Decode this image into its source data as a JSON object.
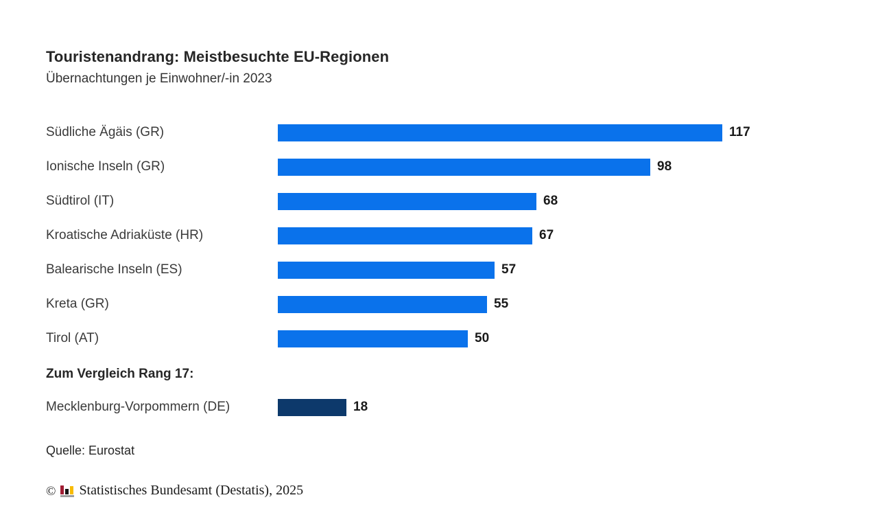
{
  "header": {
    "title": "Touristenandrang: Meistbesuchte EU-Regionen",
    "subtitle": "Übernachtungen je Einwohner/-in 2023"
  },
  "chart_data": {
    "type": "bar",
    "orientation": "horizontal",
    "title": "Touristenandrang: Meistbesuchte EU-Regionen",
    "subtitle": "Übernachtungen je Einwohner/-in 2023",
    "categories": [
      "Südliche Ägäis (GR)",
      "Ionische Inseln (GR)",
      "Südtirol (IT)",
      "Kroatische Adriaküste (HR)",
      "Balearische Inseln (ES)",
      "Kreta (GR)",
      "Tirol (AT)"
    ],
    "values": [
      117,
      98,
      68,
      67,
      57,
      55,
      50
    ],
    "comparison_heading": "Zum Vergleich Rang 17:",
    "comparison": {
      "category": "Mecklenburg-Vorpommern (DE)",
      "value": 18
    },
    "xlim": [
      0,
      117
    ],
    "grid": false,
    "legend": false,
    "value_labels": "end-of-bar"
  },
  "footer": {
    "source": "Quelle: Eurostat",
    "copyright_symbol": "©",
    "copyright": "Statistisches Bundesamt (Destatis), 2025"
  },
  "colors": {
    "bar": "#0a72eb",
    "comparison_bar": "#0d396b",
    "logo_red": "#a11d33",
    "logo_black": "#141414",
    "logo_yellow": "#f8bb00",
    "logo_gray": "#9e9e9e"
  }
}
